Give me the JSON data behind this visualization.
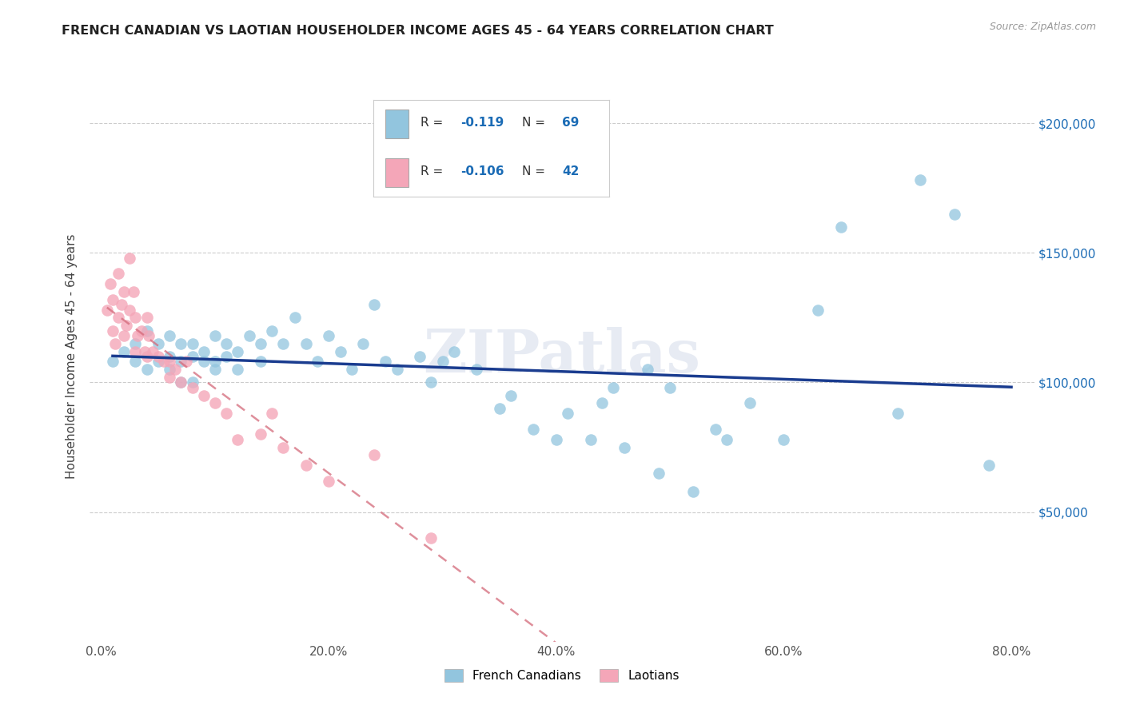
{
  "title": "FRENCH CANADIAN VS LAOTIAN HOUSEHOLDER INCOME AGES 45 - 64 YEARS CORRELATION CHART",
  "source": "Source: ZipAtlas.com",
  "ylabel": "Householder Income Ages 45 - 64 years",
  "xlabel_ticks": [
    "0.0%",
    "20.0%",
    "40.0%",
    "60.0%",
    "80.0%"
  ],
  "xlabel_vals": [
    0.0,
    0.2,
    0.4,
    0.6,
    0.8
  ],
  "ytick_labels": [
    "$50,000",
    "$100,000",
    "$150,000",
    "$200,000"
  ],
  "ytick_vals": [
    50000,
    100000,
    150000,
    200000
  ],
  "ylim": [
    0,
    220000
  ],
  "xlim": [
    -0.01,
    0.82
  ],
  "legend_entry1": "R = -0.119   N = 69",
  "legend_entry2": "R = -0.106   N = 42",
  "legend_label1": "French Canadians",
  "legend_label2": "Laotians",
  "color_blue": "#92c5de",
  "color_pink": "#f4a6b8",
  "line_blue": "#1a3c8f",
  "line_pink": "#d46a7a",
  "watermark": "ZIPatlas",
  "french_canadian_x": [
    0.01,
    0.02,
    0.03,
    0.03,
    0.04,
    0.04,
    0.05,
    0.05,
    0.06,
    0.06,
    0.06,
    0.07,
    0.07,
    0.07,
    0.08,
    0.08,
    0.08,
    0.09,
    0.09,
    0.1,
    0.1,
    0.1,
    0.11,
    0.11,
    0.12,
    0.12,
    0.13,
    0.14,
    0.14,
    0.15,
    0.16,
    0.17,
    0.18,
    0.19,
    0.2,
    0.21,
    0.22,
    0.23,
    0.24,
    0.25,
    0.26,
    0.28,
    0.29,
    0.3,
    0.31,
    0.33,
    0.35,
    0.36,
    0.38,
    0.4,
    0.41,
    0.43,
    0.44,
    0.45,
    0.46,
    0.48,
    0.49,
    0.5,
    0.52,
    0.54,
    0.55,
    0.57,
    0.6,
    0.63,
    0.65,
    0.7,
    0.72,
    0.75,
    0.78
  ],
  "french_canadian_y": [
    108000,
    112000,
    115000,
    108000,
    120000,
    105000,
    108000,
    115000,
    110000,
    105000,
    118000,
    100000,
    108000,
    115000,
    100000,
    110000,
    115000,
    108000,
    112000,
    105000,
    118000,
    108000,
    115000,
    110000,
    112000,
    105000,
    118000,
    108000,
    115000,
    120000,
    115000,
    125000,
    115000,
    108000,
    118000,
    112000,
    105000,
    115000,
    130000,
    108000,
    105000,
    110000,
    100000,
    108000,
    112000,
    105000,
    90000,
    95000,
    82000,
    78000,
    88000,
    78000,
    92000,
    98000,
    75000,
    105000,
    65000,
    98000,
    58000,
    82000,
    78000,
    92000,
    78000,
    128000,
    160000,
    88000,
    178000,
    165000,
    68000
  ],
  "laotian_x": [
    0.005,
    0.008,
    0.01,
    0.01,
    0.012,
    0.015,
    0.015,
    0.018,
    0.02,
    0.02,
    0.022,
    0.025,
    0.025,
    0.028,
    0.03,
    0.03,
    0.032,
    0.035,
    0.038,
    0.04,
    0.04,
    0.042,
    0.045,
    0.05,
    0.055,
    0.06,
    0.06,
    0.065,
    0.07,
    0.075,
    0.08,
    0.09,
    0.1,
    0.11,
    0.12,
    0.14,
    0.15,
    0.16,
    0.18,
    0.2,
    0.24,
    0.29
  ],
  "laotian_y": [
    128000,
    138000,
    120000,
    132000,
    115000,
    142000,
    125000,
    130000,
    118000,
    135000,
    122000,
    148000,
    128000,
    135000,
    112000,
    125000,
    118000,
    120000,
    112000,
    110000,
    125000,
    118000,
    112000,
    110000,
    108000,
    108000,
    102000,
    105000,
    100000,
    108000,
    98000,
    95000,
    92000,
    88000,
    78000,
    80000,
    88000,
    75000,
    68000,
    62000,
    72000,
    40000
  ]
}
